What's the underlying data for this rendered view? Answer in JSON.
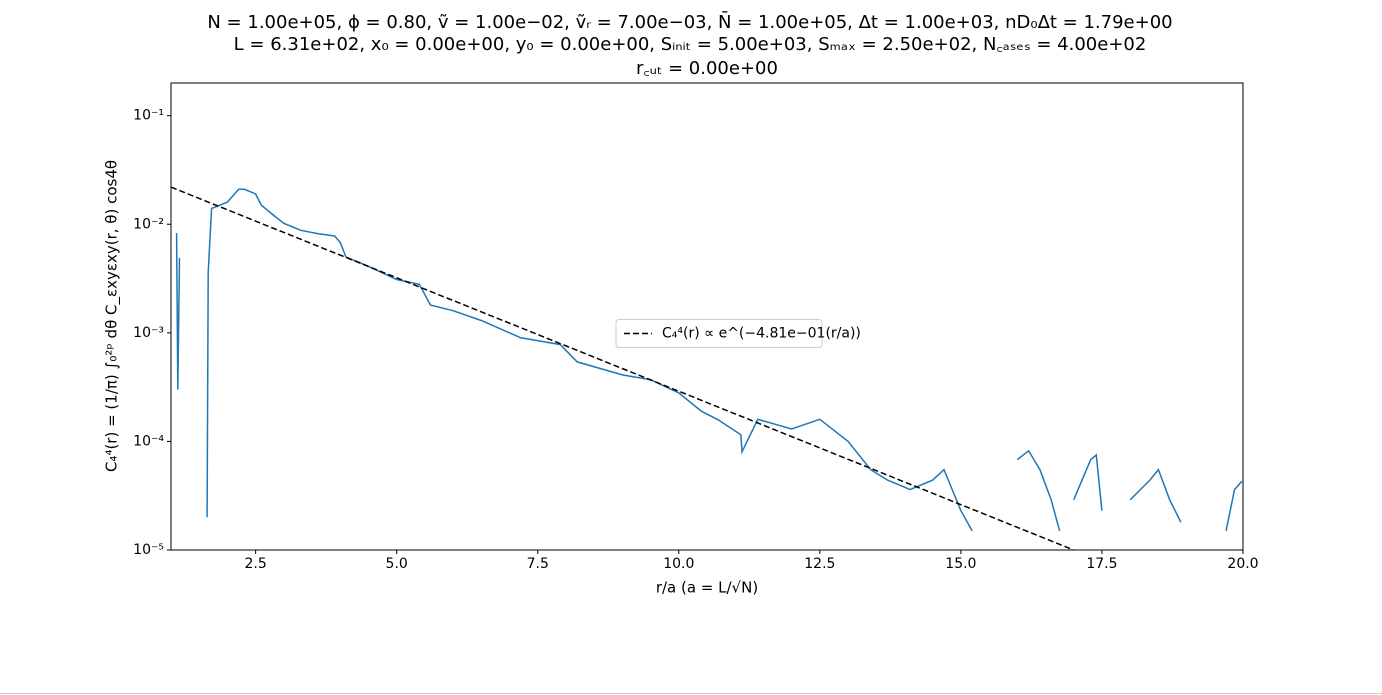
{
  "chart_data": {
    "type": "line",
    "title": [
      "N = 1.00e+05, ϕ = 0.80, ṽ = 1.00e−02, ṽᵣ = 7.00e−03, N̄ = 1.00e+05, Δt = 1.00e+03, nD₀Δt = 1.79e+00",
      "L = 6.31e+02, x₀ = 0.00e+00, y₀ = 0.00e+00, Sᵢₙᵢₜ = 5.00e+03, Sₘₐₓ = 2.50e+02, N꜀ₐₛₑₛ = 4.00e+02",
      "r꜀ᵤₜ = 0.00e+00"
    ],
    "xlabel": "r/a (a = L/√N)",
    "ylabel": "C₄⁴(r) = (1/π) ∫₀²ᵖ dθ C_εxyεxy(r, θ) cos4θ",
    "xlim": [
      1.0,
      20.0
    ],
    "ylim": [
      1e-05,
      0.2
    ],
    "yscale": "log",
    "xticks": [
      2.5,
      {
        "value": 5,
        "label": "5.0"
      },
      7.5,
      {
        "value": 10,
        "label": "10.0"
      },
      12.5,
      {
        "value": 15,
        "label": "15.0"
      },
      17.5,
      {
        "value": 20,
        "label": "20.0"
      }
    ],
    "yticks": [
      {
        "value": 1e-05,
        "label": "10⁻⁵"
      },
      {
        "value": 0.0001,
        "label": "10⁻⁴"
      },
      {
        "value": 0.001,
        "label": "10⁻³"
      },
      {
        "value": 0.01,
        "label": "10⁻²"
      },
      {
        "value": 0.1,
        "label": "10⁻¹"
      }
    ],
    "legend_loc": "center",
    "series": [
      {
        "color": "#1f77b4",
        "style": "solid",
        "x": [
          1.1,
          1.12,
          1.15,
          1.17,
          1.64,
          1.66,
          1.72,
          1.8,
          2.0,
          2.2,
          2.3,
          2.4,
          2.5,
          2.6,
          2.8,
          3.0,
          3.3,
          3.6,
          3.9,
          4.0,
          4.1,
          4.5,
          5.0,
          5.4,
          5.6,
          6.0,
          6.5,
          7.2,
          7.9,
          8.2,
          9.0,
          9.5,
          10.0,
          10.4,
          10.7,
          11.1,
          11.12,
          11.4,
          12.0,
          12.5,
          13.0,
          13.4,
          13.7,
          14.1,
          14.5,
          14.7,
          15.0,
          15.2,
          15.4,
          15.6,
          15.8,
          16.0,
          16.2,
          16.4,
          16.6,
          16.75,
          16.9,
          17.0,
          17.3,
          17.4,
          17.5,
          17.6,
          18.0,
          18.35,
          18.5,
          18.7,
          18.9,
          19.1,
          19.7,
          19.85,
          19.98
        ],
        "values": [
          0.0083,
          0.0003,
          0.0049,
          null,
          2e-05,
          0.0036,
          0.014,
          0.0145,
          0.016,
          0.021,
          0.021,
          0.02,
          0.019,
          0.015,
          0.0123,
          0.0102,
          0.0088,
          0.0082,
          0.0078,
          0.0068,
          0.005,
          0.0041,
          0.0031,
          0.0028,
          0.0018,
          0.0016,
          0.0013,
          0.0009,
          0.00078,
          0.00054,
          0.00041,
          0.00037,
          0.00028,
          0.00019,
          0.000158,
          0.000115,
          8e-05,
          0.00016,
          0.00013,
          0.00016,
          0.0001,
          5.5e-05,
          4.4e-05,
          3.6e-05,
          4.4e-05,
          5.5e-05,
          2.3e-05,
          1.5e-05,
          null,
          2.3e-05,
          null,
          6.8e-05,
          8.2e-05,
          5.5e-05,
          2.9e-05,
          1.5e-05,
          null,
          2.9e-05,
          6.8e-05,
          7.5e-05,
          2.3e-05,
          null,
          2.9e-05,
          4.4e-05,
          5.5e-05,
          2.9e-05,
          1.8e-05,
          null,
          1.5e-05,
          3.6e-05,
          4.3e-05
        ]
      },
      {
        "name": "C₄⁴(r) ∝ e^(−4.81e−01(r/a))",
        "color": "#000000",
        "style": "dashed",
        "x": [
          1.0,
          17.0
        ],
        "values": [
          0.022,
          1e-05
        ]
      }
    ]
  }
}
